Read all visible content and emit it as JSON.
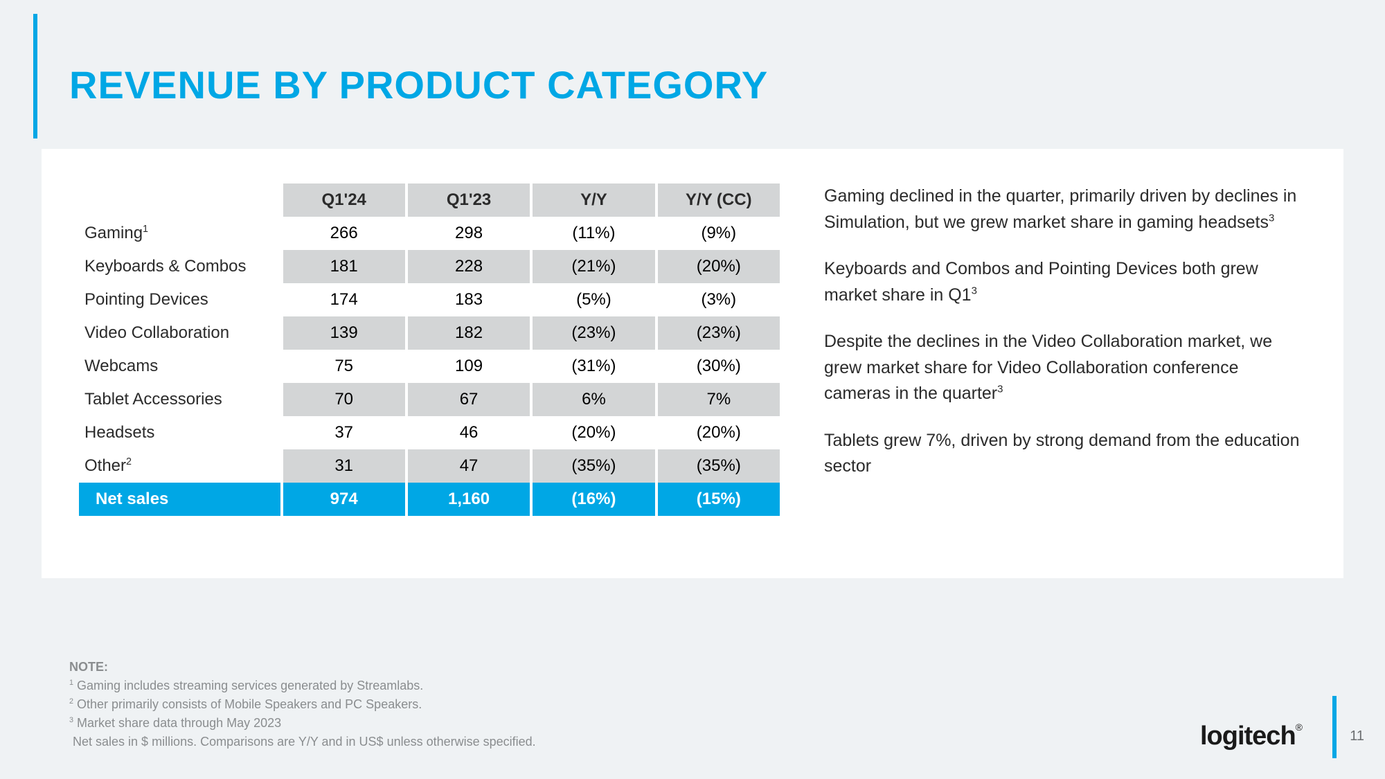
{
  "page": {
    "title": "REVENUE BY PRODUCT CATEGORY",
    "page_number": "11",
    "brand": "logitech",
    "accent_color": "#00a7e5",
    "background_color": "#eff2f4",
    "card_background": "#ffffff",
    "header_cell_color": "#d3d5d6",
    "shaded_cell_color": "#d3d5d6",
    "total_row_color": "#00a7e5",
    "body_font_size_pt": 18,
    "title_font_size_pt": 42
  },
  "table": {
    "type": "table",
    "columns": [
      "",
      "Q1'24",
      "Q1'23",
      "Y/Y",
      "Y/Y (CC)"
    ],
    "rows": [
      {
        "label": "Gaming",
        "sup": "1",
        "q124": "266",
        "q123": "298",
        "yy": "(11%)",
        "yycc": "(9%)",
        "shaded": false
      },
      {
        "label": "Keyboards & Combos",
        "sup": "",
        "q124": "181",
        "q123": "228",
        "yy": "(21%)",
        "yycc": "(20%)",
        "shaded": true
      },
      {
        "label": "Pointing Devices",
        "sup": "",
        "q124": "174",
        "q123": "183",
        "yy": "(5%)",
        "yycc": "(3%)",
        "shaded": false
      },
      {
        "label": "Video Collaboration",
        "sup": "",
        "q124": "139",
        "q123": "182",
        "yy": "(23%)",
        "yycc": "(23%)",
        "shaded": true
      },
      {
        "label": "Webcams",
        "sup": "",
        "q124": "75",
        "q123": "109",
        "yy": "(31%)",
        "yycc": "(30%)",
        "shaded": false
      },
      {
        "label": "Tablet Accessories",
        "sup": "",
        "q124": "70",
        "q123": "67",
        "yy": "6%",
        "yycc": "7%",
        "shaded": true
      },
      {
        "label": "Headsets",
        "sup": "",
        "q124": "37",
        "q123": "46",
        "yy": "(20%)",
        "yycc": "(20%)",
        "shaded": false
      },
      {
        "label": "Other",
        "sup": "2",
        "q124": "31",
        "q123": "47",
        "yy": "(35%)",
        "yycc": "(35%)",
        "shaded": true
      }
    ],
    "total": {
      "label": "Net sales",
      "q124": "974",
      "q123": "1,160",
      "yy": "(16%)",
      "yycc": "(15%)"
    }
  },
  "commentary": {
    "p1": "Gaming declined in the quarter, primarily driven by declines in Simulation, but we grew market share in gaming headsets",
    "p1_sup": "3",
    "p2": "Keyboards and Combos and Pointing Devices both grew market share in Q1",
    "p2_sup": "3",
    "p3": "Despite the declines in the Video Collaboration market, we grew market share for Video Collaboration conference cameras in the quarter",
    "p3_sup": "3",
    "p4": "Tablets grew 7%, driven by strong demand from the education sector",
    "p4_sup": ""
  },
  "footnotes": {
    "label": "NOTE:",
    "n1_sup": "1",
    "n1": " Gaming includes streaming services generated by Streamlabs.",
    "n2_sup": "2",
    "n2": " Other primarily consists of Mobile Speakers and PC Speakers.",
    "n3_sup": "3",
    "n3": " Market share data through May 2023",
    "n4": "Net sales in $ millions.  Comparisons are Y/Y and in US$ unless otherwise specified."
  }
}
